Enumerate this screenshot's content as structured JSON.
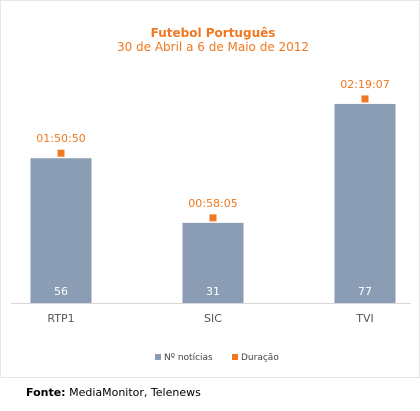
{
  "chart_data": {
    "type": "bar",
    "title": "Futebol Português",
    "subtitle": "30 de Abril a 6 de Maio de 2012",
    "categories": [
      "RTP1",
      "SIC",
      "TVI"
    ],
    "series": [
      {
        "name": "Nº notícias",
        "values": [
          56,
          31,
          77
        ],
        "color": "#8a9db5"
      },
      {
        "name": "Duração",
        "values": [
          "01:50:50",
          "00:58:05",
          "02:19:07"
        ],
        "color": "#f07820"
      }
    ],
    "ylim": [
      0,
      82
    ],
    "grid": false,
    "legend": "bottom"
  },
  "source": {
    "label": "Fonte:",
    "text": "MediaMonitor, Telenews"
  }
}
